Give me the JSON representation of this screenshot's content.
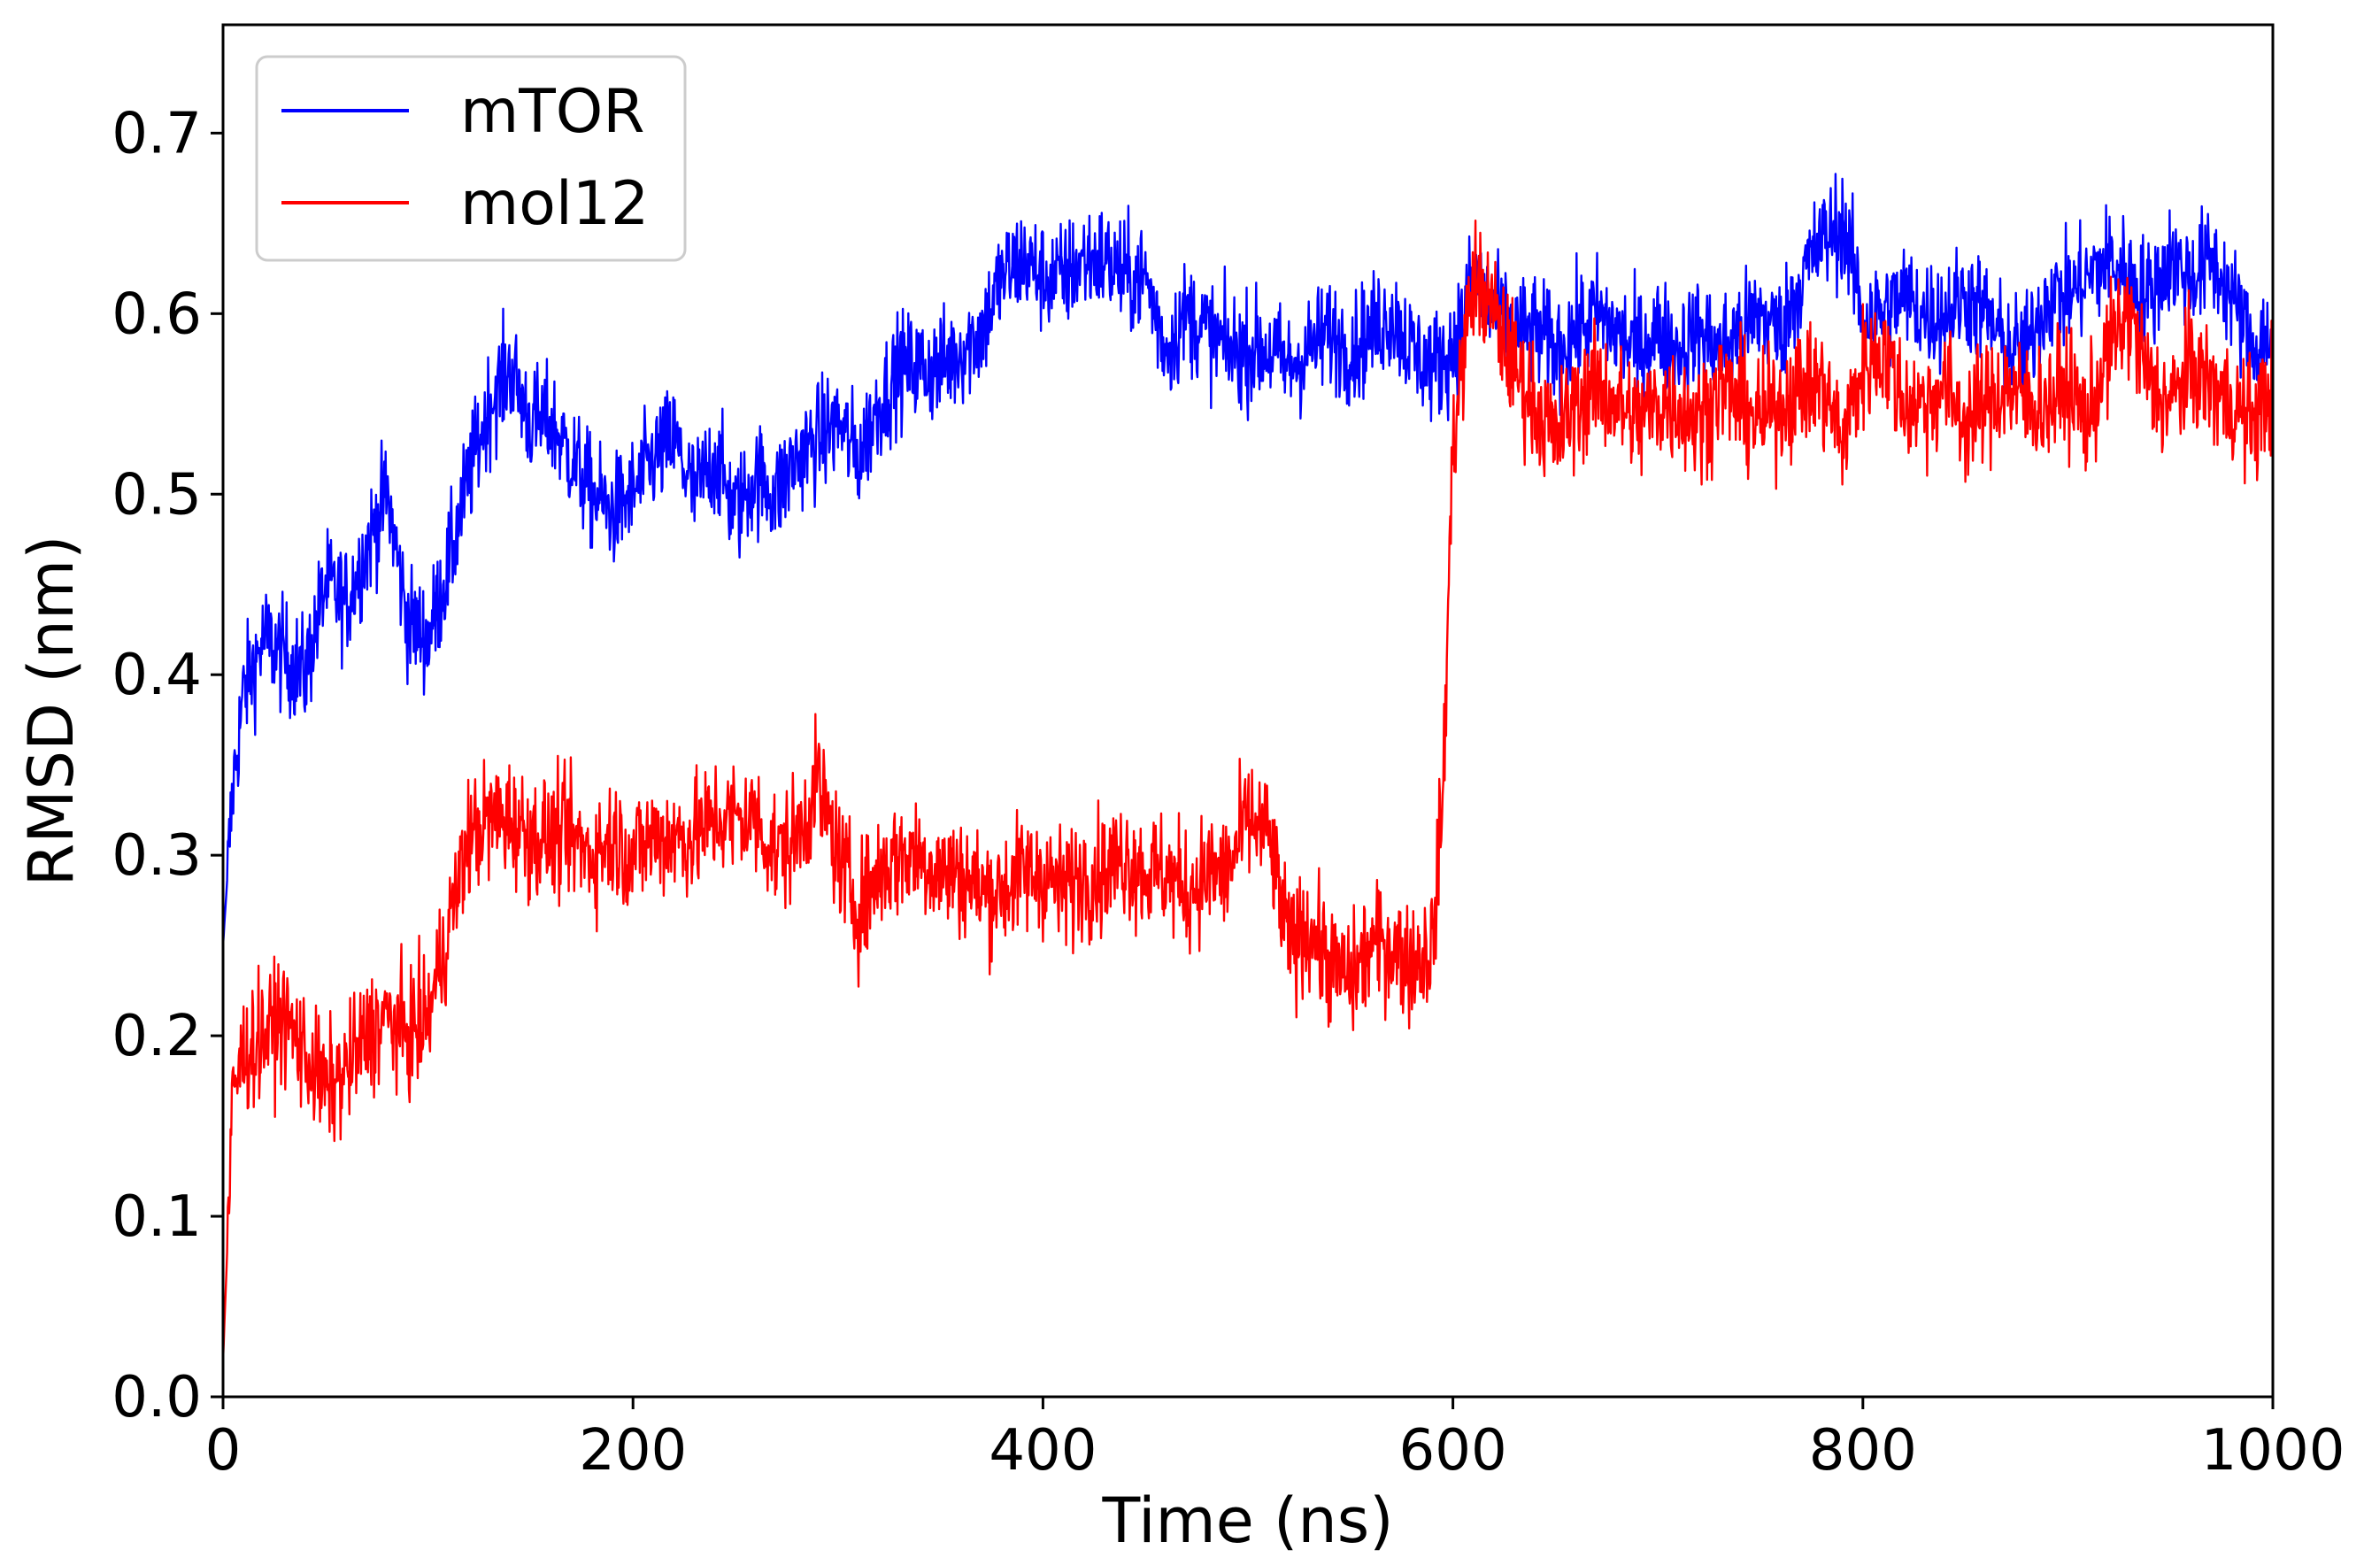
{
  "chart_data": {
    "type": "line",
    "xlabel": "Time (ns)",
    "ylabel": "RMSD (nm)",
    "xlim": [
      0,
      1000
    ],
    "ylim": [
      0,
      0.76
    ],
    "xticks": [
      0,
      200,
      400,
      600,
      800,
      1000
    ],
    "yticks": [
      0.0,
      0.1,
      0.2,
      0.3,
      0.4,
      0.5,
      0.6,
      0.7
    ],
    "grid": false,
    "legend_position": "top-left",
    "series": [
      {
        "name": "mTOR",
        "color": "#0000ff",
        "x": [
          0,
          5,
          10,
          20,
          30,
          40,
          50,
          60,
          70,
          80,
          90,
          100,
          110,
          120,
          130,
          140,
          150,
          160,
          170,
          180,
          190,
          200,
          210,
          220,
          230,
          240,
          250,
          260,
          270,
          280,
          290,
          300,
          310,
          320,
          330,
          340,
          350,
          360,
          370,
          380,
          390,
          400,
          410,
          420,
          430,
          440,
          450,
          460,
          470,
          480,
          490,
          500,
          510,
          520,
          530,
          540,
          550,
          560,
          570,
          580,
          590,
          600,
          610,
          620,
          630,
          640,
          650,
          660,
          670,
          680,
          690,
          700,
          710,
          720,
          730,
          740,
          750,
          760,
          770,
          780,
          790,
          800,
          810,
          820,
          830,
          840,
          850,
          860,
          870,
          880,
          890,
          900,
          910,
          920,
          930,
          940,
          950,
          960,
          970,
          980,
          990,
          1000
        ],
        "y": [
          0.25,
          0.34,
          0.39,
          0.42,
          0.41,
          0.4,
          0.45,
          0.44,
          0.47,
          0.5,
          0.43,
          0.42,
          0.46,
          0.51,
          0.55,
          0.57,
          0.54,
          0.54,
          0.52,
          0.5,
          0.49,
          0.5,
          0.52,
          0.53,
          0.5,
          0.52,
          0.49,
          0.51,
          0.5,
          0.52,
          0.53,
          0.54,
          0.52,
          0.55,
          0.57,
          0.57,
          0.57,
          0.58,
          0.59,
          0.62,
          0.63,
          0.62,
          0.62,
          0.63,
          0.63,
          0.62,
          0.62,
          0.58,
          0.6,
          0.59,
          0.58,
          0.58,
          0.58,
          0.57,
          0.58,
          0.59,
          0.58,
          0.59,
          0.6,
          0.58,
          0.57,
          0.58,
          0.62,
          0.6,
          0.59,
          0.59,
          0.58,
          0.59,
          0.6,
          0.59,
          0.58,
          0.59,
          0.58,
          0.59,
          0.58,
          0.59,
          0.6,
          0.59,
          0.62,
          0.64,
          0.65,
          0.6,
          0.6,
          0.61,
          0.6,
          0.6,
          0.61,
          0.6,
          0.58,
          0.58,
          0.61,
          0.61,
          0.62,
          0.63,
          0.62,
          0.61,
          0.63,
          0.62,
          0.63,
          0.61,
          0.58,
          0.59
        ]
      },
      {
        "name": "mol12",
        "color": "#ff0000",
        "x": [
          0,
          5,
          10,
          20,
          30,
          40,
          50,
          60,
          70,
          80,
          90,
          100,
          110,
          120,
          130,
          140,
          150,
          160,
          170,
          180,
          190,
          200,
          210,
          220,
          230,
          240,
          250,
          260,
          270,
          280,
          290,
          300,
          310,
          320,
          330,
          340,
          350,
          360,
          370,
          380,
          390,
          400,
          410,
          420,
          430,
          440,
          450,
          460,
          470,
          480,
          490,
          500,
          510,
          520,
          530,
          540,
          550,
          560,
          570,
          580,
          590,
          595,
          600,
          610,
          620,
          630,
          640,
          650,
          660,
          670,
          680,
          690,
          700,
          710,
          720,
          730,
          740,
          750,
          760,
          770,
          780,
          790,
          800,
          810,
          820,
          830,
          840,
          850,
          860,
          870,
          880,
          890,
          900,
          910,
          920,
          930,
          940,
          950,
          960,
          970,
          980,
          990,
          1000
        ],
        "y": [
          0.02,
          0.17,
          0.19,
          0.2,
          0.21,
          0.19,
          0.17,
          0.18,
          0.2,
          0.21,
          0.2,
          0.21,
          0.26,
          0.31,
          0.32,
          0.32,
          0.31,
          0.31,
          0.31,
          0.3,
          0.31,
          0.3,
          0.31,
          0.31,
          0.31,
          0.32,
          0.32,
          0.32,
          0.3,
          0.31,
          0.34,
          0.3,
          0.27,
          0.29,
          0.3,
          0.3,
          0.29,
          0.29,
          0.28,
          0.28,
          0.29,
          0.29,
          0.28,
          0.29,
          0.29,
          0.3,
          0.29,
          0.29,
          0.28,
          0.29,
          0.29,
          0.32,
          0.31,
          0.25,
          0.26,
          0.24,
          0.23,
          0.25,
          0.25,
          0.24,
          0.25,
          0.33,
          0.53,
          0.62,
          0.6,
          0.57,
          0.55,
          0.53,
          0.55,
          0.56,
          0.55,
          0.54,
          0.55,
          0.55,
          0.54,
          0.56,
          0.55,
          0.54,
          0.55,
          0.56,
          0.56,
          0.53,
          0.57,
          0.58,
          0.55,
          0.55,
          0.56,
          0.54,
          0.55,
          0.56,
          0.55,
          0.55,
          0.56,
          0.54,
          0.58,
          0.6,
          0.56,
          0.55,
          0.57,
          0.56,
          0.55,
          0.54,
          0.56
        ]
      }
    ]
  }
}
